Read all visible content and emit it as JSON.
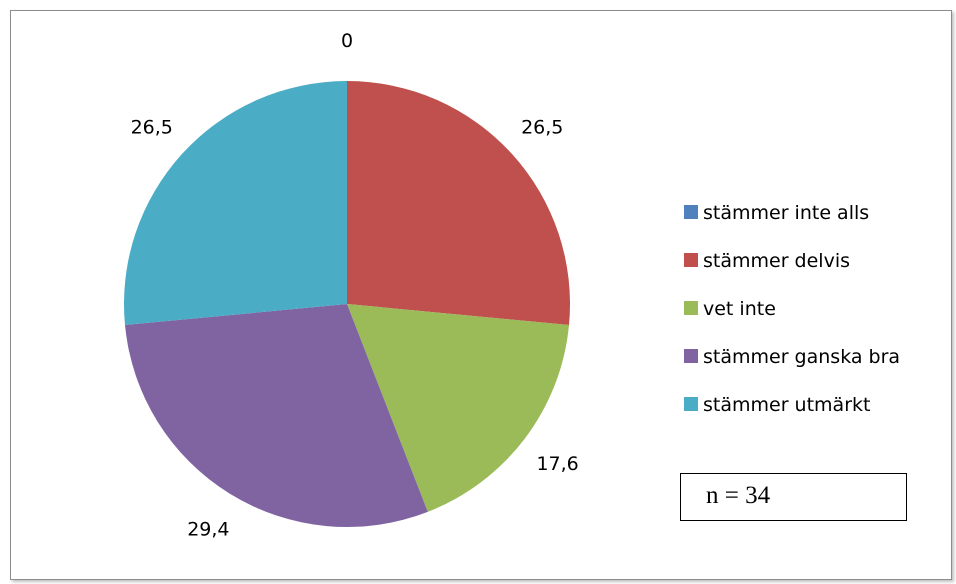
{
  "chart_data": {
    "type": "pie",
    "title": "",
    "categories": [
      "stämmer inte alls",
      "stämmer delvis",
      "vet inte",
      "stämmer ganska bra",
      "stämmer utmärkt"
    ],
    "values": [
      0,
      26.5,
      17.6,
      29.4,
      26.5
    ],
    "value_labels": [
      "0",
      "26,5",
      "17,6",
      "29,4",
      "26,5"
    ],
    "colors": [
      "#4f81bd",
      "#c0504d",
      "#9bbb59",
      "#8064a2",
      "#4bacc6"
    ],
    "legend_position": "right",
    "start_angle": "12 o'clock, clockwise"
  },
  "annotation": {
    "text": "n = 34"
  }
}
